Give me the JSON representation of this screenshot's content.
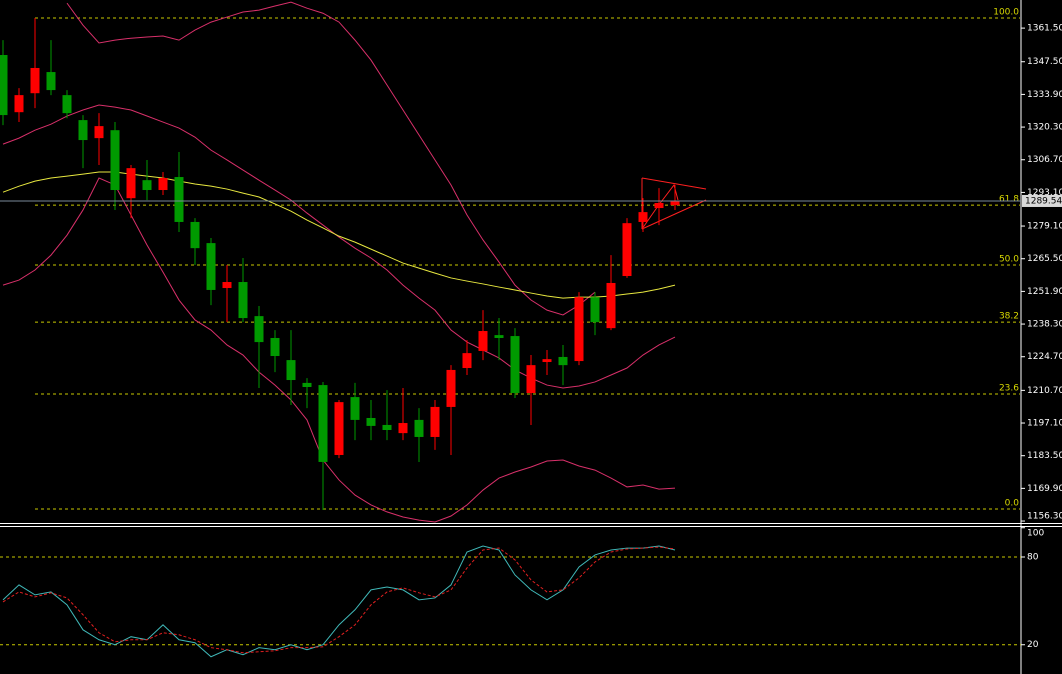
{
  "chart_data": [
    {
      "type": "candlestick",
      "categories": [
        null,
        null,
        null,
        null,
        null,
        null,
        null,
        null,
        null,
        null,
        null,
        null,
        null,
        null,
        null,
        null,
        null,
        null,
        null,
        null,
        null,
        null,
        null,
        null,
        null,
        null,
        null,
        null,
        null,
        null,
        null,
        null,
        null,
        null,
        null,
        null,
        null,
        null,
        null,
        null,
        null,
        null,
        null
      ],
      "open": [
        1350.3,
        1326.5,
        1334.4,
        1343.2,
        1333.6,
        1323.2,
        1315.7,
        1319.0,
        1290.7,
        1298.2,
        1294.1,
        1299.5,
        1280.8,
        1272.0,
        1253.3,
        1255.8,
        1241.6,
        1232.5,
        1223.3,
        1213.8,
        1212.9,
        1183.8,
        1207.9,
        1199.2,
        1196.3,
        1192.9,
        1198.4,
        1191.3,
        1203.8,
        1220.0,
        1227.1,
        1233.7,
        1233.3,
        1209.6,
        1222.5,
        1224.6,
        1222.9,
        1249.5,
        1236.6,
        1258.3,
        1280.8,
        1286.6,
        1287.8
      ],
      "high": [
        1356.5,
        1336.5,
        1365.7,
        1356.5,
        1335.7,
        1325.3,
        1326.1,
        1322.4,
        1304.5,
        1306.6,
        1301.6,
        1309.9,
        1282.4,
        1274.1,
        1262.9,
        1265.8,
        1245.8,
        1235.8,
        1235.8,
        1215.8,
        1214.2,
        1206.7,
        1213.8,
        1206.7,
        1210.8,
        1211.7,
        1203.3,
        1206.7,
        1221.2,
        1231.6,
        1244.1,
        1240.8,
        1236.6,
        1225.4,
        1227.5,
        1229.6,
        1251.6,
        1251.6,
        1267.0,
        1282.4,
        1290.7,
        1294.9,
        1296.2
      ],
      "low": [
        1321.1,
        1322.4,
        1328.2,
        1333.6,
        1324.0,
        1303.2,
        1304.5,
        1285.8,
        1282.4,
        1289.9,
        1292.0,
        1276.6,
        1262.9,
        1246.2,
        1239.1,
        1239.1,
        1211.7,
        1218.3,
        1204.6,
        1203.3,
        1160.9,
        1182.5,
        1190.0,
        1190.0,
        1190.0,
        1190.0,
        1180.9,
        1185.9,
        1183.8,
        1217.1,
        1223.3,
        1223.3,
        1207.5,
        1196.3,
        1217.1,
        1212.9,
        1221.2,
        1233.7,
        1235.8,
        1257.5,
        1276.6,
        1279.5,
        1285.8
      ],
      "close": [
        1325.3,
        1333.6,
        1344.9,
        1335.7,
        1326.1,
        1314.9,
        1320.7,
        1294.1,
        1303.2,
        1294.1,
        1299.1,
        1280.8,
        1269.9,
        1252.5,
        1255.8,
        1240.8,
        1230.8,
        1225.0,
        1215.0,
        1212.1,
        1180.9,
        1205.8,
        1198.4,
        1195.9,
        1194.2,
        1197.1,
        1191.3,
        1203.8,
        1219.2,
        1226.2,
        1235.4,
        1232.5,
        1209.6,
        1221.2,
        1223.7,
        1221.2,
        1249.5,
        1239.1,
        1255.4,
        1280.3,
        1284.9,
        1288.7,
        1289.5
      ],
      "up_color": "#ff0000",
      "down_color": "#009a00",
      "series": [
        {
          "color": "#d8306a",
          "values": [
            null,
            null,
            null,
            null,
            1371.9,
            1362.7,
            1355.3,
            1356.5,
            1357.3,
            1357.8,
            1358.2,
            1356.5,
            1360.7,
            1364.0,
            1366.1,
            1368.2,
            1369.0,
            1370.7,
            1372.3,
            1369.8,
            1367.7,
            1364.0,
            1356.5,
            1348.2,
            1337.8,
            1327.4,
            1317.0,
            1306.6,
            1296.2,
            1283.7,
            1273.3,
            1264.1,
            1254.5,
            1248.3,
            1244.1,
            1242.1,
            1246.2,
            1251.6,
            null,
            null,
            null,
            null,
            null
          ]
        },
        {
          "color": "#d8306a",
          "values": [
            1313.2,
            1315.7,
            1319.0,
            1321.5,
            1324.9,
            1327.4,
            1329.5,
            1328.6,
            1327.4,
            1324.9,
            1322.4,
            1319.9,
            1316.1,
            1310.7,
            1306.6,
            1302.4,
            1298.2,
            1294.1,
            1289.9,
            1284.5,
            1279.5,
            1274.5,
            1269.9,
            1265.8,
            1260.8,
            1254.5,
            1249.1,
            1244.1,
            1235.8,
            1230.8,
            1227.5,
            1224.2,
            1219.2,
            1215.8,
            1212.9,
            1211.7,
            1212.5,
            1214.2,
            1217.1,
            1220.0,
            1225.4,
            1229.6,
            1232.9
          ]
        },
        {
          "color": "#d8306a",
          "values": [
            1254.5,
            1256.6,
            1260.8,
            1267.0,
            1275.3,
            1285.8,
            1299.1,
            1296.2,
            1283.7,
            1271.2,
            1259.9,
            1248.3,
            1240.0,
            1235.8,
            1229.6,
            1225.4,
            1218.3,
            1212.9,
            1206.7,
            1198.4,
            1181.7,
            1173.4,
            1167.1,
            1163.0,
            1160.1,
            1158.0,
            1156.7,
            1155.9,
            1158.4,
            1163.0,
            1169.2,
            1174.2,
            1176.7,
            1178.8,
            1181.3,
            1181.7,
            1179.2,
            1177.5,
            1174.2,
            1170.5,
            1171.3,
            1169.6,
            1170.0
          ]
        },
        {
          "color": "#e8e840",
          "values": [
            1293.2,
            1295.7,
            1297.8,
            1299.1,
            1299.9,
            1300.7,
            1301.6,
            1301.6,
            1300.7,
            1299.9,
            1299.1,
            1297.8,
            1296.6,
            1295.7,
            1294.5,
            1292.8,
            1291.2,
            1288.3,
            1285.3,
            1281.6,
            1278.3,
            1274.9,
            1272.4,
            1269.5,
            1266.6,
            1263.7,
            1261.6,
            1259.5,
            1257.5,
            1256.2,
            1255.0,
            1253.7,
            1252.5,
            1251.2,
            1250.0,
            1249.1,
            1249.5,
            1249.5,
            1250.0,
            1250.8,
            1251.6,
            1252.9,
            1254.5
          ]
        }
      ],
      "ylim": [
        1155.9,
        1373.2
      ],
      "yticks": [
        {
          "value": 1361.5,
          "label": "1361.50"
        },
        {
          "value": 1347.5,
          "label": "1347.50"
        },
        {
          "value": 1333.9,
          "label": "1333.90"
        },
        {
          "value": 1320.3,
          "label": "1320.30"
        },
        {
          "value": 1306.7,
          "label": "1306.70"
        },
        {
          "value": 1293.1,
          "label": "1293.10"
        },
        {
          "value": 1279.1,
          "label": "1279.10"
        },
        {
          "value": 1265.5,
          "label": "1265.50"
        },
        {
          "value": 1251.9,
          "label": "1251.90"
        },
        {
          "value": 1238.3,
          "label": "1238.30"
        },
        {
          "value": 1224.7,
          "label": "1224.70"
        },
        {
          "value": 1210.7,
          "label": "1210.70"
        },
        {
          "value": 1197.1,
          "label": "1197.10"
        },
        {
          "value": 1183.5,
          "label": "1183.50"
        },
        {
          "value": 1169.9,
          "label": "1169.90"
        },
        {
          "value": 1156.3,
          "label": "1156.30"
        }
      ],
      "grid": false,
      "fib_levels": [
        {
          "value": 1365.7,
          "label": "100.0"
        },
        {
          "value": 1287.8,
          "label": "61.8"
        },
        {
          "value": 1262.9,
          "label": "50.0"
        },
        {
          "value": 1239.1,
          "label": "38.2"
        },
        {
          "value": 1209.2,
          "label": "23.6"
        },
        {
          "value": 1161.3,
          "label": "0.0"
        }
      ],
      "fib_color": "#c8c800",
      "last_price": 1289.54
    },
    {
      "type": "line",
      "series": [
        {
          "color": "#40b8b8",
          "dash": false,
          "values": [
            50.7,
            60.9,
            54.1,
            56.1,
            47.3,
            30.2,
            23.4,
            20.0,
            25.5,
            23.4,
            33.6,
            23.4,
            21.4,
            11.8,
            16.6,
            13.2,
            18.0,
            16.6,
            20.0,
            16.6,
            20.0,
            33.6,
            43.9,
            57.5,
            59.5,
            57.5,
            50.7,
            52.0,
            60.9,
            83.4,
            87.5,
            84.8,
            67.7,
            57.5,
            50.7,
            57.5,
            73.2,
            81.4,
            84.8,
            86.1,
            86.1,
            87.5,
            84.8
          ]
        },
        {
          "color": "#e02020",
          "dash": true,
          "values": [
            49.3,
            56.1,
            52.7,
            55.5,
            52.0,
            40.5,
            28.2,
            22.0,
            23.4,
            23.4,
            28.2,
            26.8,
            23.4,
            18.0,
            16.6,
            14.5,
            15.2,
            15.9,
            18.0,
            18.0,
            18.6,
            25.5,
            33.6,
            47.3,
            56.1,
            58.9,
            55.5,
            52.7,
            57.5,
            72.5,
            84.8,
            86.1,
            78.0,
            64.3,
            56.1,
            57.5,
            65.7,
            76.6,
            83.4,
            85.5,
            86.1,
            86.8,
            85.5
          ]
        }
      ],
      "ylim": [
        0,
        100.5
      ],
      "yticks": [
        100,
        80,
        20
      ],
      "levels": [
        80,
        20
      ],
      "level_color": "#c8c800"
    }
  ]
}
